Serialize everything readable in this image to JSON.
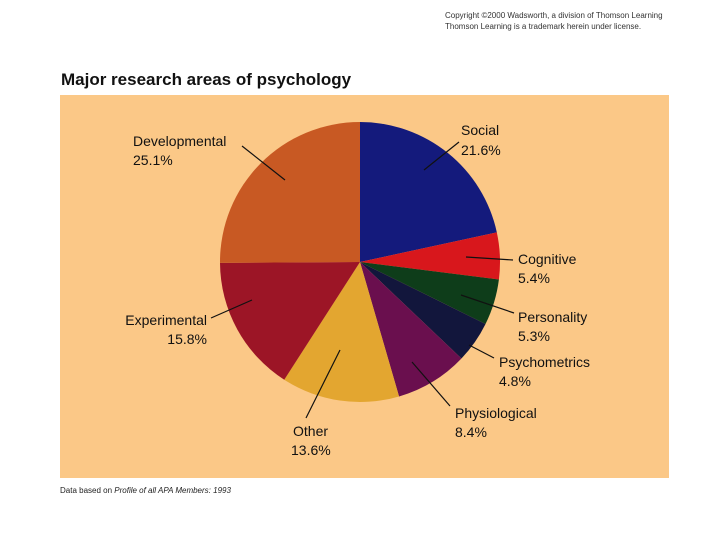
{
  "header": {
    "copyright_line1": "Copyright ©2000 Wadsworth, a division of Thomson Learning",
    "copyright_line2": "Thomson Learning is a trademark herein under license."
  },
  "footer": {
    "source_prefix": "Data based on ",
    "source_italic": "Profile of all APA Members: 1993"
  },
  "colors": {
    "background_panel": "#fbc887"
  },
  "chart_data": {
    "type": "pie",
    "title": "Major research areas of psychology",
    "slices": [
      {
        "name": "Social",
        "value": 21.6,
        "label": "21.6%",
        "color": "#141a7c"
      },
      {
        "name": "Cognitive",
        "value": 5.4,
        "label": "5.4%",
        "color": "#d8171c"
      },
      {
        "name": "Personality",
        "value": 5.3,
        "label": "5.3%",
        "color": "#0e3d1a"
      },
      {
        "name": "Psychometrics",
        "value": 4.8,
        "label": "4.8%",
        "color": "#12163c"
      },
      {
        "name": "Physiological",
        "value": 8.4,
        "label": "8.4%",
        "color": "#6a0f4e"
      },
      {
        "name": "Other",
        "value": 13.6,
        "label": "13.6%",
        "color": "#e3a630"
      },
      {
        "name": "Experimental",
        "value": 15.8,
        "label": "15.8%",
        "color": "#9c1526"
      },
      {
        "name": "Developmental",
        "value": 25.1,
        "label": "25.1%",
        "color": "#c85923"
      }
    ],
    "start_angle_deg": 0,
    "direction": "clockwise",
    "legend": "none (direct labels)"
  }
}
